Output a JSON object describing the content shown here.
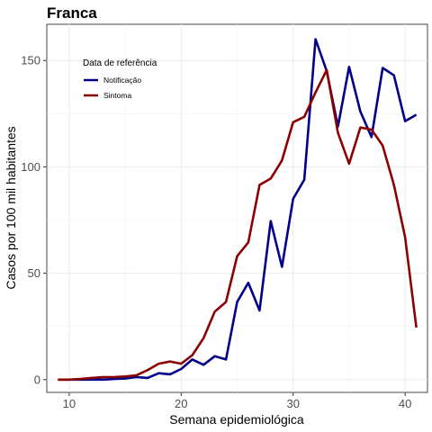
{
  "chart_data": {
    "type": "line",
    "title": "Franca",
    "xlabel": "Semana epidemiológica",
    "ylabel": "Casos por 100 mil habitantes",
    "xlim": [
      8,
      42
    ],
    "ylim": [
      -6,
      167
    ],
    "x_ticks": [
      10,
      20,
      30,
      40
    ],
    "y_ticks": [
      0,
      50,
      100,
      150
    ],
    "grid": true,
    "legend": {
      "title": "Data de referência",
      "placement": "top-left"
    },
    "x": [
      9,
      10,
      11,
      12,
      13,
      14,
      15,
      16,
      17,
      18,
      19,
      20,
      21,
      22,
      23,
      24,
      25,
      26,
      27,
      28,
      29,
      30,
      31,
      32,
      33,
      34,
      35,
      36,
      37,
      38,
      39,
      40,
      41
    ],
    "series": [
      {
        "name": "Notificação",
        "color": "#00008b",
        "values": [
          0,
          0,
          0,
          0,
          0,
          0.3,
          0.5,
          1.2,
          0.8,
          3,
          2.5,
          5,
          9.5,
          7,
          11,
          9.5,
          36.5,
          45.5,
          32.5,
          74.5,
          53,
          85,
          94,
          160,
          145,
          119,
          147,
          126,
          114,
          146.5,
          143,
          121.5,
          124.5
        ]
      },
      {
        "name": "Sintoma",
        "color": "#8b0000",
        "values": [
          0,
          0,
          0.3,
          0.8,
          1.2,
          1.2,
          1.5,
          2,
          4.5,
          7.5,
          8.5,
          7.5,
          11.5,
          19.5,
          32,
          36.5,
          58,
          64.5,
          91.5,
          94.5,
          103,
          121,
          123.5,
          135,
          145.5,
          116,
          101.5,
          118.5,
          117.5,
          110,
          91.5,
          67,
          24.5
        ]
      }
    ]
  }
}
